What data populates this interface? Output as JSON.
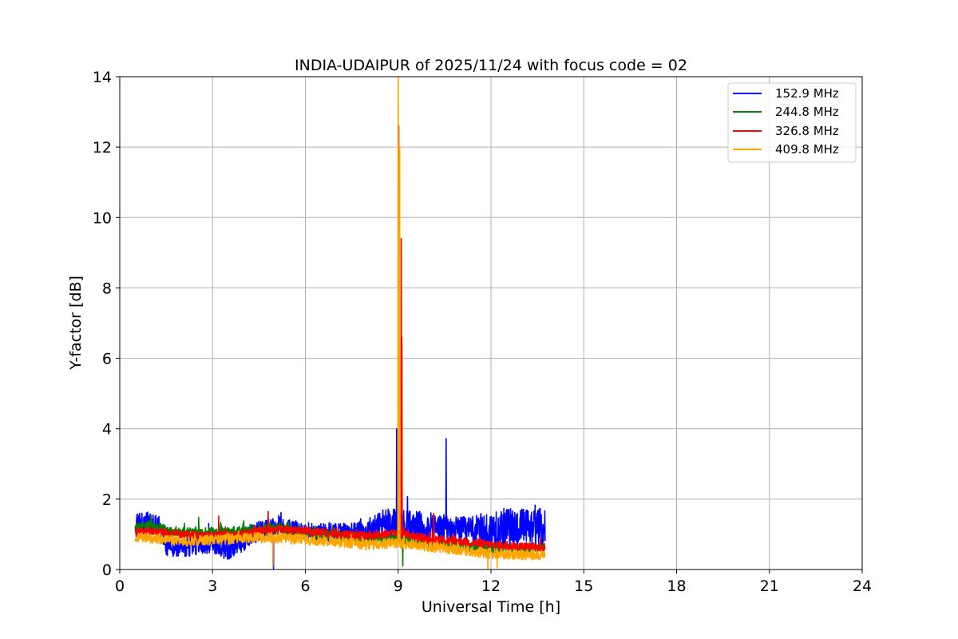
{
  "chart_data": {
    "type": "line",
    "title": "INDIA-UDAIPUR of 2025/11/24 with focus code = 02",
    "xlabel": "Universal Time [h]",
    "ylabel": "Y-factor [dB]",
    "xlim": [
      0,
      24
    ],
    "ylim": [
      0,
      14
    ],
    "xticks": [
      0,
      3,
      6,
      9,
      12,
      15,
      18,
      21,
      24
    ],
    "yticks": [
      0,
      2,
      4,
      6,
      8,
      10,
      12,
      14
    ],
    "grid": true,
    "legend_position": "top-right",
    "data_time_range": [
      0.5,
      13.75
    ],
    "series": [
      {
        "name": "152.9 MHz",
        "color": "#0000ff",
        "base": [
          [
            0.5,
            1.3
          ],
          [
            1.0,
            1.35
          ],
          [
            1.3,
            1.2
          ],
          [
            1.5,
            0.65
          ],
          [
            2.0,
            0.6
          ],
          [
            2.5,
            0.7
          ],
          [
            3.0,
            0.8
          ],
          [
            3.5,
            0.6
          ],
          [
            4.0,
            0.85
          ],
          [
            4.5,
            1.1
          ],
          [
            5.0,
            1.2
          ],
          [
            5.5,
            1.15
          ],
          [
            6.0,
            1.1
          ],
          [
            6.5,
            1.05
          ],
          [
            7.0,
            1.1
          ],
          [
            7.5,
            1.05
          ],
          [
            8.0,
            1.1
          ],
          [
            8.5,
            1.3
          ],
          [
            9.0,
            1.3
          ],
          [
            9.5,
            1.25
          ],
          [
            10.0,
            1.2
          ],
          [
            10.5,
            1.15
          ],
          [
            11.0,
            1.1
          ],
          [
            11.5,
            1.05
          ],
          [
            12.0,
            1.1
          ],
          [
            12.5,
            1.2
          ],
          [
            13.0,
            1.2
          ],
          [
            13.75,
            1.2
          ]
        ],
        "noise": [
          [
            0.5,
            0.3
          ],
          [
            1.3,
            0.3
          ],
          [
            1.5,
            0.25
          ],
          [
            3.5,
            0.35
          ],
          [
            4.5,
            0.3
          ],
          [
            6.0,
            0.25
          ],
          [
            8.0,
            0.3
          ],
          [
            8.2,
            0.45
          ],
          [
            11.0,
            0.4
          ],
          [
            11.8,
            0.55
          ],
          [
            13.75,
            0.55
          ]
        ],
        "spikes": [
          [
            4.97,
            0.0
          ],
          [
            8.95,
            4.0
          ],
          [
            10.55,
            3.72
          ]
        ]
      },
      {
        "name": "244.8 MHz",
        "color": "#008000",
        "base": [
          [
            0.5,
            1.2
          ],
          [
            1.0,
            1.25
          ],
          [
            1.5,
            1.1
          ],
          [
            2.0,
            1.05
          ],
          [
            2.5,
            1.05
          ],
          [
            3.0,
            1.05
          ],
          [
            4.0,
            1.1
          ],
          [
            5.0,
            1.15
          ],
          [
            6.0,
            1.05
          ],
          [
            7.0,
            0.95
          ],
          [
            8.0,
            0.9
          ],
          [
            9.0,
            0.9
          ],
          [
            10.0,
            0.75
          ],
          [
            11.0,
            0.7
          ],
          [
            12.0,
            0.6
          ],
          [
            13.0,
            0.6
          ],
          [
            13.75,
            0.6
          ]
        ],
        "noise": [
          [
            0.5,
            0.15
          ],
          [
            13.75,
            0.15
          ]
        ],
        "spikes": [
          [
            2.55,
            1.48
          ],
          [
            9.15,
            0.1
          ]
        ]
      },
      {
        "name": "326.8 MHz",
        "color": "#ff0000",
        "base": [
          [
            0.5,
            1.05
          ],
          [
            1.0,
            1.1
          ],
          [
            1.5,
            1.05
          ],
          [
            2.0,
            1.0
          ],
          [
            3.0,
            0.95
          ],
          [
            4.0,
            1.0
          ],
          [
            4.5,
            1.1
          ],
          [
            5.0,
            1.15
          ],
          [
            6.0,
            1.1
          ],
          [
            7.0,
            1.0
          ],
          [
            8.0,
            0.95
          ],
          [
            8.5,
            1.0
          ],
          [
            9.0,
            1.05
          ],
          [
            9.5,
            0.95
          ],
          [
            10.0,
            0.85
          ],
          [
            11.0,
            0.8
          ],
          [
            12.0,
            0.7
          ],
          [
            13.0,
            0.65
          ],
          [
            13.75,
            0.62
          ]
        ],
        "noise": [
          [
            0.5,
            0.12
          ],
          [
            13.75,
            0.12
          ]
        ],
        "spikes": [
          [
            3.2,
            1.52
          ],
          [
            4.8,
            1.65
          ],
          [
            9.02,
            12.6
          ],
          [
            9.1,
            9.4
          ],
          [
            9.12,
            6.6
          ],
          [
            10.15,
            1.6
          ]
        ]
      },
      {
        "name": "409.8 MHz",
        "color": "#ffa500",
        "base": [
          [
            0.5,
            0.9
          ],
          [
            1.0,
            0.9
          ],
          [
            2.0,
            0.8
          ],
          [
            3.0,
            0.85
          ],
          [
            4.0,
            0.9
          ],
          [
            5.0,
            0.9
          ],
          [
            6.0,
            0.85
          ],
          [
            7.0,
            0.8
          ],
          [
            8.0,
            0.7
          ],
          [
            9.0,
            0.75
          ],
          [
            10.0,
            0.65
          ],
          [
            11.0,
            0.55
          ],
          [
            12.0,
            0.45
          ],
          [
            13.0,
            0.42
          ],
          [
            13.75,
            0.42
          ]
        ],
        "noise": [
          [
            0.5,
            0.15
          ],
          [
            13.75,
            0.15
          ]
        ],
        "spikes": [
          [
            4.95,
            0.1
          ],
          [
            9.0,
            14.5
          ],
          [
            9.05,
            12.0
          ],
          [
            11.9,
            0.0
          ],
          [
            12.2,
            0.05
          ]
        ]
      }
    ]
  }
}
